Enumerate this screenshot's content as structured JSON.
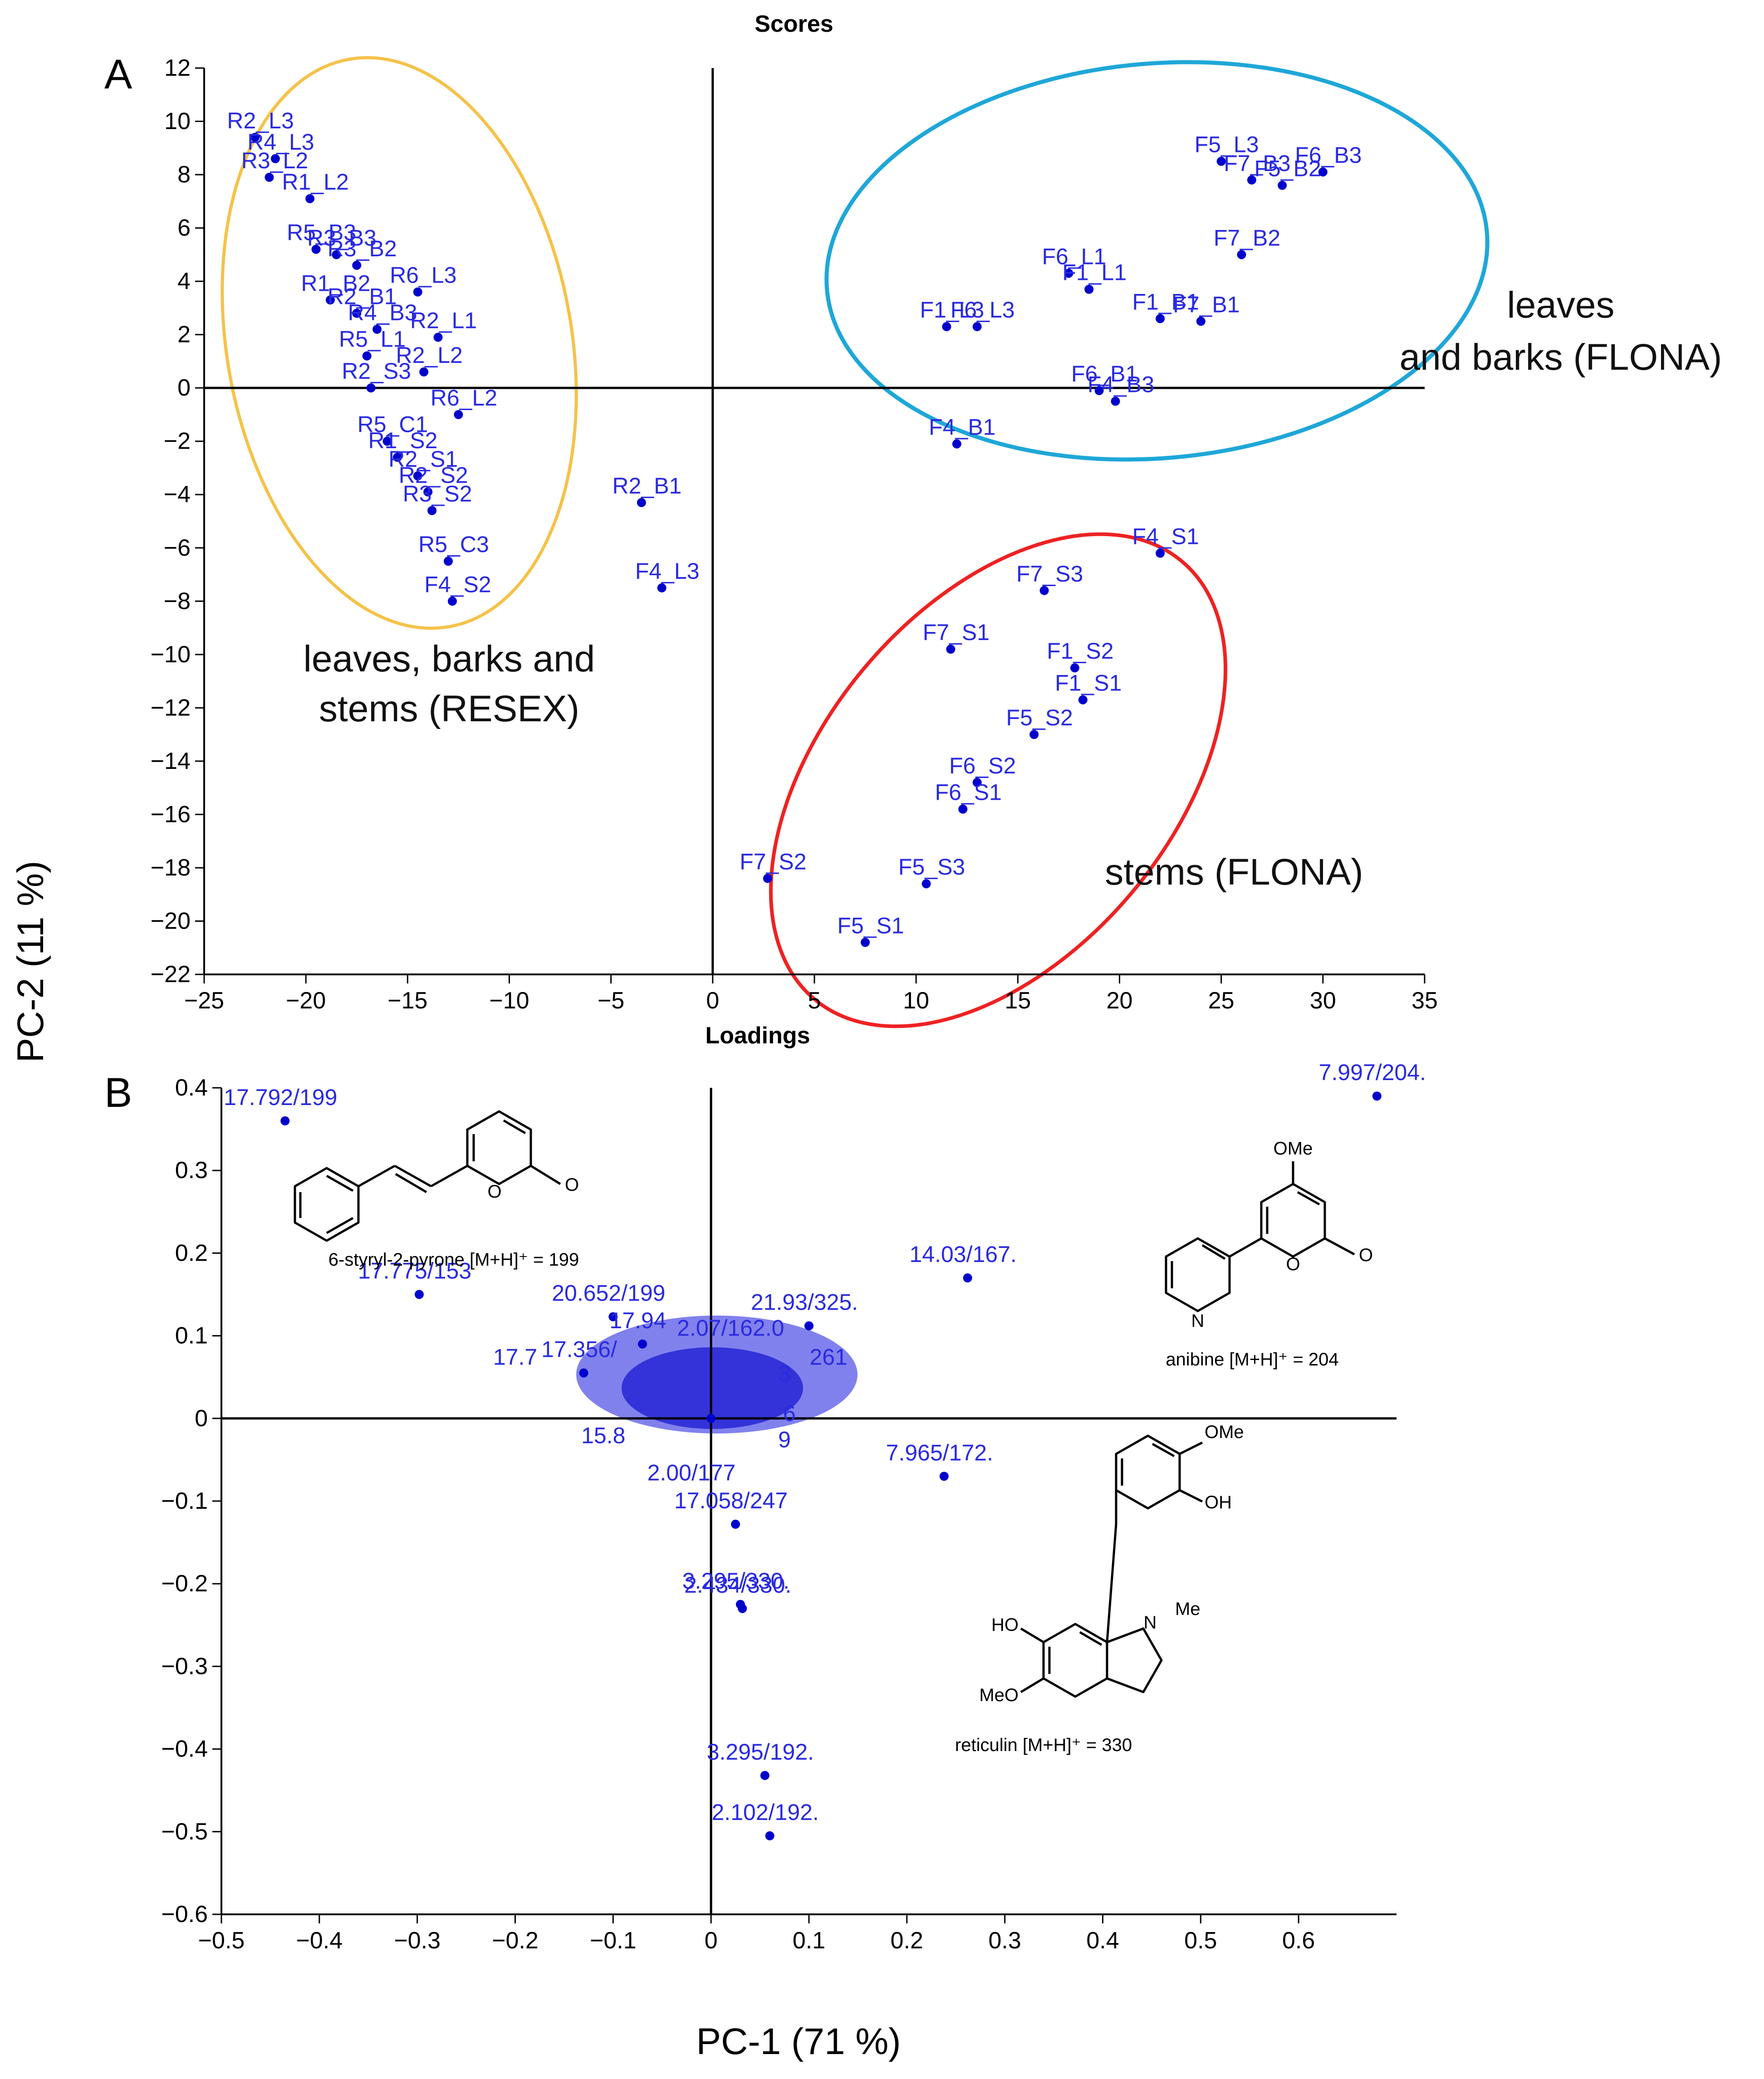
{
  "figure": {
    "y_axis_title": "PC-2 (11 %)",
    "x_axis_title": "PC-1 (71 %)"
  },
  "chart_data": [
    {
      "panel": "A",
      "type": "scatter",
      "title": "Scores",
      "xlabel": "Loadings",
      "ylabel": "",
      "xlim": [
        -25,
        35
      ],
      "ylim": [
        -22,
        12
      ],
      "xticks": [
        -25,
        -20,
        -15,
        -10,
        -5,
        0,
        5,
        10,
        15,
        20,
        25,
        30,
        35
      ],
      "yticks": [
        -22,
        -20,
        -18,
        -16,
        -14,
        -12,
        -10,
        -8,
        -6,
        -4,
        -2,
        0,
        2,
        4,
        6,
        8,
        10,
        12
      ],
      "groups": [
        {
          "label": "leaves, barks and stems (RESEX)",
          "color": "#f5c24a"
        },
        {
          "label": "leaves and barks (FLONA)",
          "color": "#1ea7d8"
        },
        {
          "label": "stems (FLONA)",
          "color": "#ee2222"
        }
      ],
      "points": [
        {
          "x": -22.5,
          "y": 9.4,
          "label": "R2_L3"
        },
        {
          "x": -21.5,
          "y": 8.6,
          "label": "R4_L3"
        },
        {
          "x": -21.8,
          "y": 7.9,
          "label": "R3_L2"
        },
        {
          "x": -19.8,
          "y": 7.1,
          "label": "R1_L2"
        },
        {
          "x": -19.5,
          "y": 5.2,
          "label": "R5_B3"
        },
        {
          "x": -18.5,
          "y": 5.0,
          "label": "R3_B3"
        },
        {
          "x": -17.5,
          "y": 4.6,
          "label": "R3_B2"
        },
        {
          "x": -14.5,
          "y": 3.6,
          "label": "R6_L3"
        },
        {
          "x": -18.8,
          "y": 3.3,
          "label": "R1_B2"
        },
        {
          "x": -17.5,
          "y": 2.8,
          "label": "R2_B1"
        },
        {
          "x": -16.5,
          "y": 2.2,
          "label": "R4_B3"
        },
        {
          "x": -13.5,
          "y": 1.9,
          "label": "R2_L1"
        },
        {
          "x": -17.0,
          "y": 1.2,
          "label": "R5_L1"
        },
        {
          "x": -14.2,
          "y": 0.6,
          "label": "R2_L2"
        },
        {
          "x": -16.8,
          "y": 0.0,
          "label": "R2_S3"
        },
        {
          "x": -12.5,
          "y": -1.0,
          "label": "R6_L2"
        },
        {
          "x": -16.0,
          "y": -2.0,
          "label": "R5_C1"
        },
        {
          "x": -15.5,
          "y": -2.6,
          "label": "R1_S2"
        },
        {
          "x": -14.5,
          "y": -3.3,
          "label": "R2_S1"
        },
        {
          "x": -14.0,
          "y": -3.9,
          "label": "R2_S2"
        },
        {
          "x": -13.8,
          "y": -4.6,
          "label": "R3_S2"
        },
        {
          "x": -13.0,
          "y": -6.5,
          "label": "R5_C3"
        },
        {
          "x": -12.8,
          "y": -8.0,
          "label": "F4_S2"
        },
        {
          "x": -3.5,
          "y": -4.3,
          "label": "R2_B1"
        },
        {
          "x": -2.5,
          "y": -7.5,
          "label": "F4_L3"
        },
        {
          "x": 25.0,
          "y": 8.5,
          "label": "F5_L3"
        },
        {
          "x": 26.5,
          "y": 7.8,
          "label": "F7_B3"
        },
        {
          "x": 28.0,
          "y": 7.6,
          "label": "F5_B2"
        },
        {
          "x": 30.0,
          "y": 8.1,
          "label": "F6_B3"
        },
        {
          "x": 26.0,
          "y": 5.0,
          "label": "F7_B2"
        },
        {
          "x": 17.5,
          "y": 4.3,
          "label": "F6_L1"
        },
        {
          "x": 18.5,
          "y": 3.7,
          "label": "F1_L1"
        },
        {
          "x": 11.5,
          "y": 2.3,
          "label": "F1_L3"
        },
        {
          "x": 13.0,
          "y": 2.3,
          "label": "F6_L3"
        },
        {
          "x": 22.0,
          "y": 2.6,
          "label": "F1_B1"
        },
        {
          "x": 24.0,
          "y": 2.5,
          "label": "F7_B1"
        },
        {
          "x": 19.0,
          "y": -0.1,
          "label": "F6_B1"
        },
        {
          "x": 19.8,
          "y": -0.5,
          "label": "F4_B3"
        },
        {
          "x": 12.0,
          "y": -2.1,
          "label": "F4_B1"
        },
        {
          "x": 22.0,
          "y": -6.2,
          "label": "F4_S1"
        },
        {
          "x": 16.3,
          "y": -7.6,
          "label": "F7_S3"
        },
        {
          "x": 11.7,
          "y": -9.8,
          "label": "F7_S1"
        },
        {
          "x": 17.8,
          "y": -10.5,
          "label": "F1_S2"
        },
        {
          "x": 18.2,
          "y": -11.7,
          "label": "F1_S1"
        },
        {
          "x": 15.8,
          "y": -13.0,
          "label": "F5_S2"
        },
        {
          "x": 13.0,
          "y": -14.8,
          "label": "F6_S2"
        },
        {
          "x": 12.3,
          "y": -15.8,
          "label": "F6_S1"
        },
        {
          "x": 2.7,
          "y": -18.4,
          "label": "F7_S2"
        },
        {
          "x": 10.5,
          "y": -18.6,
          "label": "F5_S3"
        },
        {
          "x": 7.5,
          "y": -20.8,
          "label": "F5_S1"
        }
      ]
    },
    {
      "panel": "B",
      "type": "scatter",
      "title": "",
      "xlabel": "",
      "ylabel": "",
      "xlim": [
        -0.5,
        0.7
      ],
      "ylim": [
        -0.6,
        0.4
      ],
      "xticks": [
        -0.5,
        -0.4,
        -0.3,
        -0.2,
        -0.1,
        0,
        0.1,
        0.2,
        0.3,
        0.4,
        0.5,
        0.6
      ],
      "yticks": [
        -0.6,
        -0.5,
        -0.4,
        -0.3,
        -0.2,
        -0.1,
        0,
        0.1,
        0.2,
        0.3,
        0.4
      ],
      "points": [
        {
          "x": -0.435,
          "y": 0.36,
          "label": "17.792/199"
        },
        {
          "x": -0.298,
          "y": 0.15,
          "label": "17.775/153"
        },
        {
          "x": -0.1,
          "y": 0.123,
          "label": "20.652/199"
        },
        {
          "x": 0.262,
          "y": 0.17,
          "label": "14.03/167."
        },
        {
          "x": 0.1,
          "y": 0.112,
          "label": "21.93/325."
        },
        {
          "x": 0.68,
          "y": 0.39,
          "label": "7.997/204."
        },
        {
          "x": 0.238,
          "y": -0.07,
          "label": "7.965/172."
        },
        {
          "x": 0.025,
          "y": -0.128,
          "label": "17.058/247"
        },
        {
          "x": 0.03,
          "y": -0.225,
          "label": "3.295/330."
        },
        {
          "x": 0.032,
          "y": -0.23,
          "label": "2.434/330."
        },
        {
          "x": 0.055,
          "y": -0.432,
          "label": "3.295/192."
        },
        {
          "x": 0.06,
          "y": -0.505,
          "label": "2.102/192."
        },
        {
          "x": -0.13,
          "y": 0.055,
          "label": "17.356/"
        },
        {
          "x": -0.07,
          "y": 0.09,
          "label": "17.94"
        },
        {
          "x": 0.0,
          "y": 0.0,
          "label": ""
        }
      ],
      "point_labels_overlapping": [
        "2.07/162.0",
        "17.7",
        "261",
        "15.8",
        "2.00/177",
        "3",
        "6",
        "9"
      ],
      "structures": [
        {
          "name": "6-styryl-2-pyrone",
          "caption": "6-styryl-2-pyrone [M+H]⁺ = 199",
          "atom_label": "O"
        },
        {
          "name": "anibine",
          "caption": "anibine [M+H]⁺ = 204",
          "atom_labels": [
            "OMe",
            "N",
            "O"
          ]
        },
        {
          "name": "reticulin",
          "caption": "reticulin [M+H]⁺ = 330",
          "atom_labels": [
            "OMe",
            "OH",
            "HO",
            "N",
            "Me",
            "MeO"
          ]
        }
      ]
    }
  ]
}
